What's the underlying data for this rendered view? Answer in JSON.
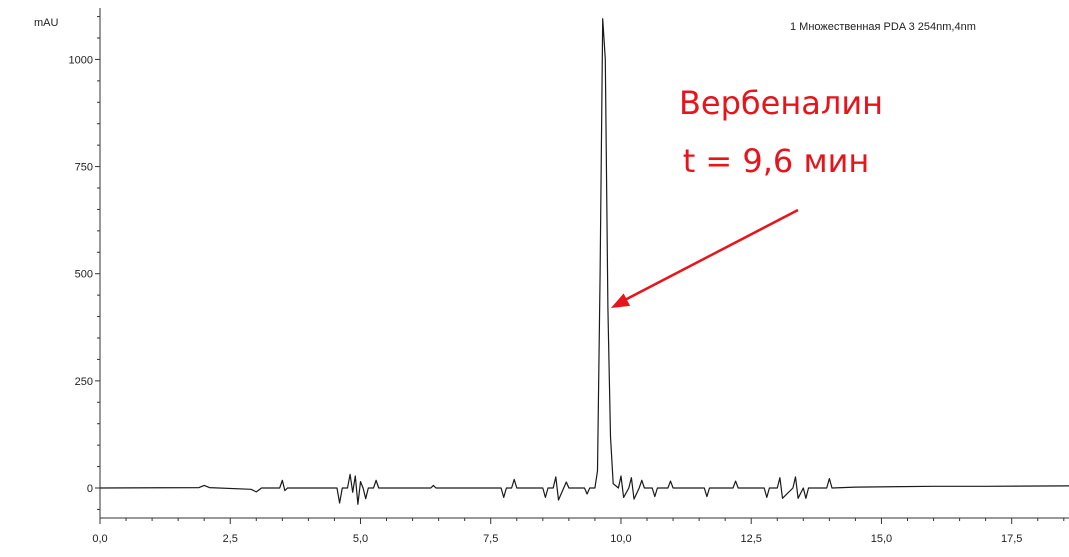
{
  "chart_data": {
    "type": "line",
    "ylabel": "mAU",
    "series_label": "1 Множественная PDA 3 254nm,4nm",
    "xlim": [
      0,
      18.6
    ],
    "ylim": [
      -70,
      1120
    ],
    "x_ticks": [
      {
        "value": 0,
        "label": "0,0"
      },
      {
        "value": 2.5,
        "label": "2,5"
      },
      {
        "value": 5,
        "label": "5,0"
      },
      {
        "value": 7.5,
        "label": "7,5"
      },
      {
        "value": 10,
        "label": "10,0"
      },
      {
        "value": 12.5,
        "label": "12,5"
      },
      {
        "value": 15,
        "label": "15,0"
      },
      {
        "value": 17.5,
        "label": "17,5"
      }
    ],
    "y_ticks": [
      {
        "value": 0,
        "label": "0"
      },
      {
        "value": 250,
        "label": "250"
      },
      {
        "value": 500,
        "label": "500"
      },
      {
        "value": 750,
        "label": "750"
      },
      {
        "value": 1000,
        "label": "1000"
      }
    ],
    "line_color": "#1a1a1a",
    "series": [
      {
        "x": [
          0,
          1.9,
          2.0,
          2.1,
          2.9,
          3.0,
          3.1,
          3.45,
          3.5,
          3.55,
          3.6,
          4.55,
          4.6,
          4.65,
          4.75,
          4.8,
          4.85,
          4.9,
          4.95,
          5.0,
          5.05,
          5.1,
          5.15,
          5.25,
          5.3,
          5.35,
          6.35,
          6.4,
          6.45,
          7.7,
          7.75,
          7.8,
          7.9,
          7.95,
          8.0,
          8.5,
          8.55,
          8.6,
          8.7,
          8.75,
          8.8,
          8.9,
          8.95,
          9.0,
          9.3,
          9.35,
          9.4,
          9.5,
          9.55,
          9.6,
          9.65,
          9.7,
          9.75,
          9.8,
          9.85,
          9.95,
          10.0,
          10.05,
          10.15,
          10.2,
          10.25,
          10.35,
          10.4,
          10.45,
          10.6,
          10.65,
          10.7,
          10.9,
          10.95,
          11.0,
          11.6,
          11.65,
          11.7,
          12.15,
          12.2,
          12.25,
          12.75,
          12.8,
          12.85,
          13.0,
          13.05,
          13.1,
          13.3,
          13.35,
          13.4,
          13.5,
          13.55,
          13.6,
          13.95,
          14.0,
          14.05,
          14.5,
          16.0,
          17.0,
          18.6
        ],
        "y": [
          0,
          1,
          6,
          1,
          -3,
          -9,
          0,
          0,
          18,
          -6,
          0,
          0,
          -35,
          0,
          0,
          32,
          -10,
          28,
          -38,
          15,
          0,
          -25,
          0,
          0,
          18,
          0,
          0,
          6,
          0,
          0,
          -22,
          0,
          0,
          20,
          0,
          0,
          -22,
          0,
          0,
          26,
          -28,
          0,
          14,
          0,
          0,
          -14,
          0,
          0,
          40,
          500,
          1095,
          1000,
          420,
          120,
          10,
          0,
          28,
          -22,
          0,
          24,
          -26,
          0,
          18,
          0,
          0,
          -20,
          0,
          0,
          16,
          0,
          0,
          -20,
          0,
          0,
          16,
          0,
          0,
          -22,
          0,
          0,
          24,
          -24,
          0,
          26,
          -24,
          0,
          -24,
          0,
          0,
          22,
          0,
          2,
          4,
          4,
          5
        ]
      }
    ],
    "annotation": {
      "line1": "Вербеналин",
      "line2": "t = 9,6 мин",
      "color": "#e8141b",
      "target_x": 9.75,
      "target_y": 420
    }
  }
}
